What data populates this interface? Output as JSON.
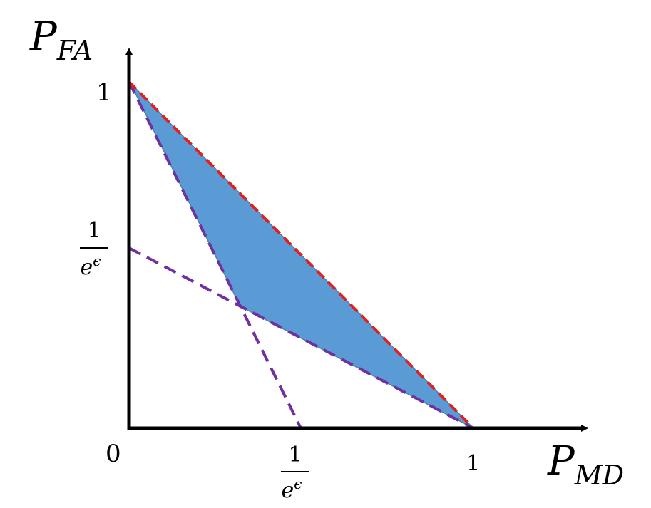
{
  "axes": {
    "y_label": {
      "main": "P",
      "sub": "FA"
    },
    "x_label": {
      "main": "P",
      "sub": "MD"
    }
  },
  "ticks": {
    "origin": "0",
    "y_one": "1",
    "x_one": "1",
    "y_frac": {
      "numerator": "1",
      "base": "e",
      "exponent": "ϵ"
    },
    "x_frac": {
      "numerator": "1",
      "base": "e",
      "exponent": "ϵ"
    }
  }
}
